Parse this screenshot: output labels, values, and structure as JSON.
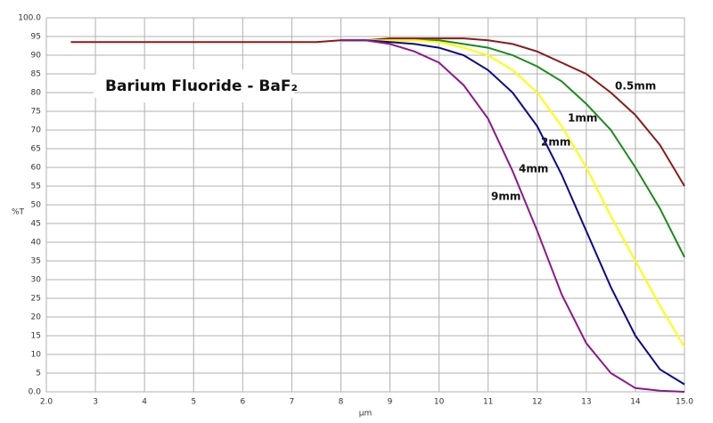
{
  "chart_data": {
    "type": "line",
    "title": "Barium Fluoride - BaF₂",
    "x_label": "µm",
    "y_label": "%T",
    "x": [
      2.5,
      3,
      3.5,
      4,
      4.5,
      5,
      5.5,
      6,
      6.5,
      7,
      7.5,
      8,
      8.5,
      9,
      9.5,
      10,
      10.5,
      11,
      11.5,
      12,
      12.5,
      13,
      13.5,
      14,
      14.5,
      15
    ],
    "series": [
      {
        "name": "0.5mm",
        "color": "#8b1a1a",
        "values": [
          93.5,
          93.5,
          93.5,
          93.5,
          93.5,
          93.5,
          93.5,
          93.5,
          93.5,
          93.5,
          93.5,
          94,
          94,
          94.5,
          94.5,
          94.5,
          94.5,
          94,
          93,
          91,
          88,
          85,
          80,
          74,
          66,
          55
        ]
      },
      {
        "name": "1mm",
        "color": "#1a8c1a",
        "values": [
          null,
          null,
          null,
          null,
          null,
          null,
          null,
          null,
          null,
          null,
          null,
          94,
          94,
          94,
          94,
          94,
          93,
          92,
          90,
          87,
          83,
          77,
          70,
          60,
          49,
          36
        ]
      },
      {
        "name": "2mm",
        "color": "#ffff00",
        "values": [
          null,
          null,
          null,
          null,
          null,
          null,
          null,
          null,
          null,
          null,
          null,
          94,
          94,
          94,
          94,
          93.5,
          92,
          90,
          86,
          80,
          71,
          60,
          47,
          35,
          23,
          12
        ]
      },
      {
        "name": "4mm",
        "color": "#0a0a8c",
        "values": [
          null,
          null,
          null,
          null,
          null,
          null,
          null,
          null,
          null,
          null,
          null,
          94,
          94,
          93.5,
          93,
          92,
          90,
          86,
          80,
          71,
          58,
          43,
          28,
          15,
          6,
          2
        ]
      },
      {
        "name": "9mm",
        "color": "#8b1a8b",
        "values": [
          null,
          null,
          null,
          null,
          null,
          null,
          null,
          null,
          null,
          null,
          null,
          94,
          94,
          93,
          91,
          88,
          82,
          73,
          59,
          43,
          26,
          13,
          5,
          1,
          0.3,
          0
        ]
      }
    ],
    "xlim": [
      2,
      15
    ],
    "xticks": [
      {
        "value": 2,
        "label": "2.0"
      },
      3,
      4,
      5,
      6,
      7,
      8,
      9,
      10,
      11,
      12,
      13,
      14,
      {
        "value": 15,
        "label": "15.0"
      }
    ],
    "ylim": [
      0,
      100
    ],
    "yticks": [
      {
        "value": 0,
        "label": "0.0"
      },
      5,
      10,
      15,
      20,
      25,
      30,
      35,
      40,
      45,
      50,
      55,
      60,
      65,
      70,
      75,
      80,
      85,
      90,
      95,
      {
        "value": 100,
        "label": "100.0"
      }
    ],
    "grid": true
  }
}
